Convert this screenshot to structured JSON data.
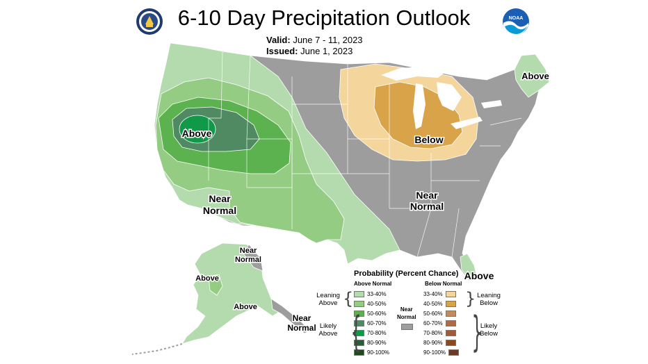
{
  "header": {
    "title": "6-10 Day Precipitation Outlook",
    "valid_label": "Valid:",
    "valid_value": "June 7 - 11, 2023",
    "issued_label": "Issued:",
    "issued_value": "June 1, 2023",
    "left_logo": "doc-seal-icon",
    "right_logo_text": "NOAA"
  },
  "map_labels": {
    "west_above": "Above",
    "southwest_near_1": "Near",
    "southwest_near_2": "Normal",
    "great_lakes_below": "Below",
    "southeast_near_1": "Near",
    "southeast_near_2": "Normal",
    "maine_above": "Above",
    "florida_above": "Above",
    "alaska_near_north_1": "Near",
    "alaska_near_north_2": "Normal",
    "alaska_above_west": "Above",
    "alaska_above_south": "Above",
    "alaska_near_south_1": "Near",
    "alaska_near_south_2": "Normal"
  },
  "legend": {
    "title": "Probability (Percent Chance)",
    "above_header": "Above Normal",
    "below_header": "Below Normal",
    "near_label_1": "Near",
    "near_label_2": "Normal",
    "leaning_above_1": "Leaning",
    "leaning_above_2": "Above",
    "likely_above_1": "Likely",
    "likely_above_2": "Above",
    "leaning_below_1": "Leaning",
    "leaning_below_2": "Below",
    "likely_below_1": "Likely",
    "likely_below_2": "Below",
    "ranges": [
      "33-40%",
      "40-50%",
      "50-60%",
      "60-70%",
      "70-80%",
      "80-90%",
      "90-100%"
    ],
    "above_colors": [
      "#b3dbad",
      "#95cc83",
      "#5bb24e",
      "#4f8a63",
      "#109a47",
      "#2c5b38",
      "#1e4a1d"
    ],
    "below_colors": [
      "#f4d69c",
      "#d9a449",
      "#c18b5b",
      "#ad6c48",
      "#9f5c3b",
      "#8a4a1f",
      "#6b3a24"
    ],
    "near_color": "#9d9d9d"
  },
  "colors": {
    "near_normal": "#9d9d9d",
    "above_33_40": "#b3dbad",
    "above_40_50": "#95cc83",
    "above_50_60": "#5bb24e",
    "above_60_70": "#4f8a63",
    "above_70_80": "#109a47",
    "below_33_40": "#f4d69c",
    "below_40_50": "#d9a449"
  }
}
